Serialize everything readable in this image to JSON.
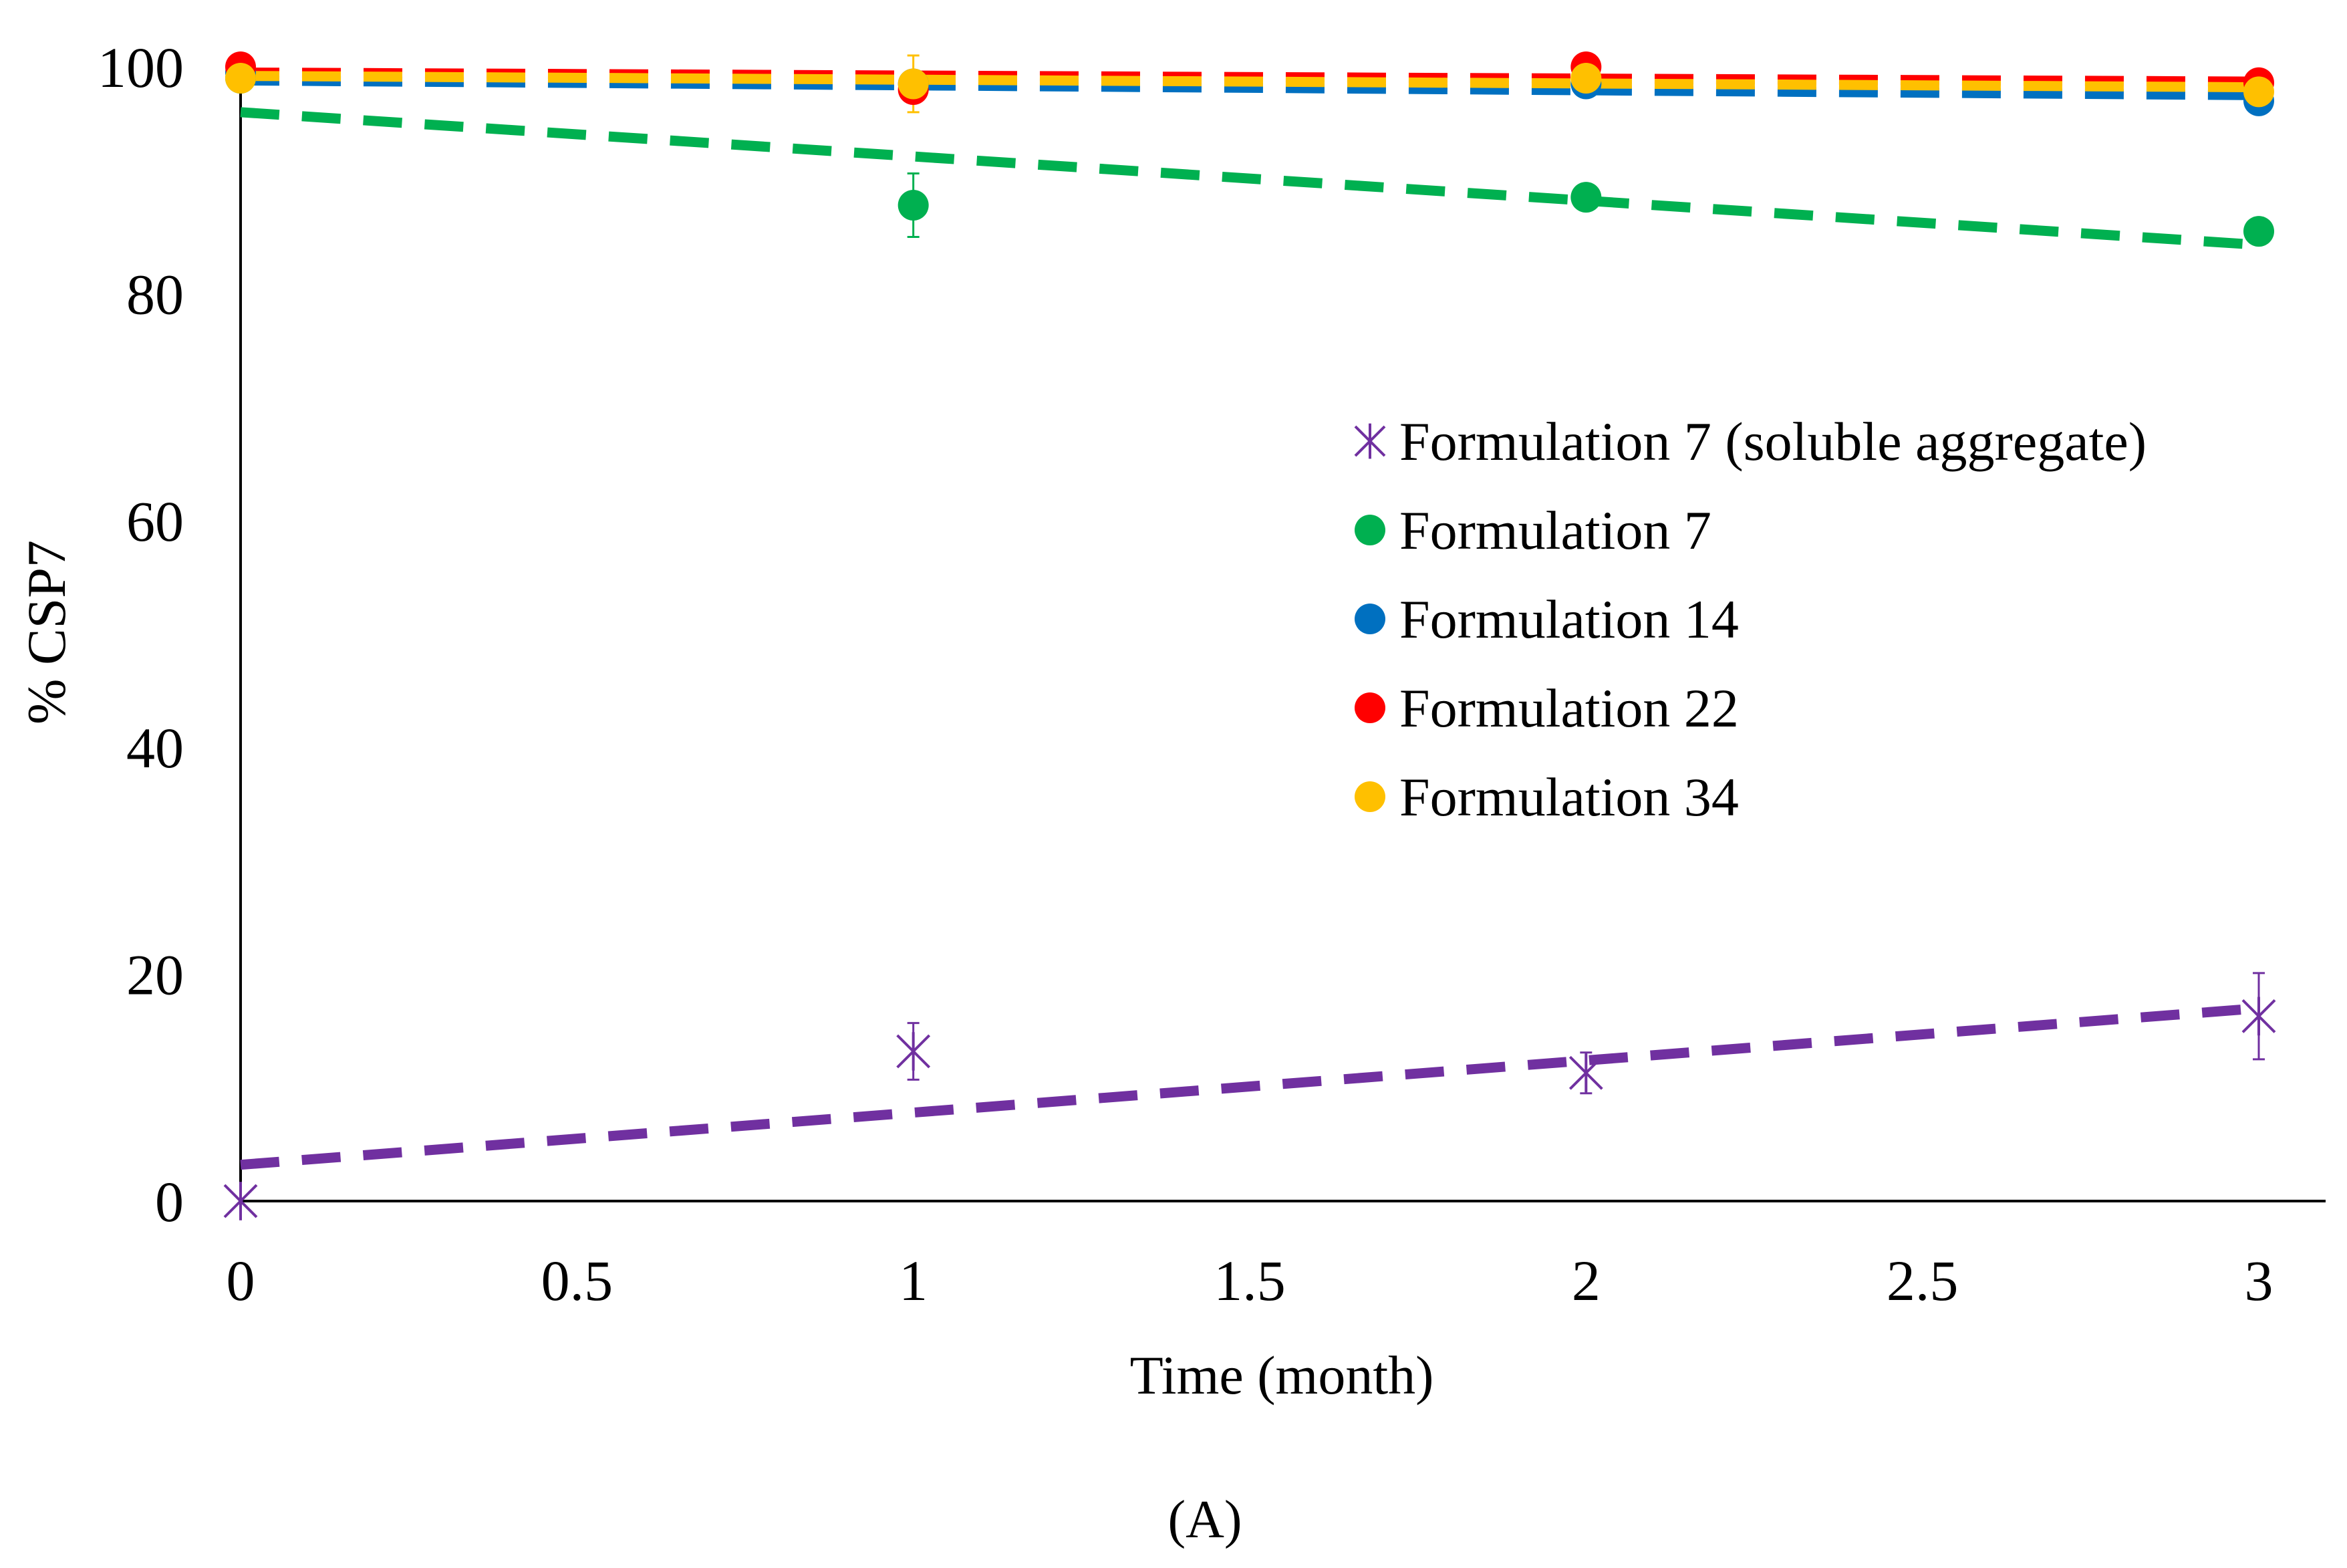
{
  "chart_data": {
    "type": "scatter",
    "panel_label": "(A)",
    "xlabel": "Time (month)",
    "ylabel": "% CSP7",
    "xlim": [
      0,
      3
    ],
    "ylim": [
      0,
      100
    ],
    "x_ticks": [
      "0",
      "0.5",
      "1",
      "1.5",
      "2",
      "2.5",
      "3"
    ],
    "y_ticks": [
      "0",
      "20",
      "40",
      "60",
      "80",
      "100"
    ],
    "x_tick_values": [
      0,
      0.5,
      1,
      1.5,
      2,
      2.5,
      3
    ],
    "y_tick_values": [
      0,
      20,
      40,
      60,
      80,
      100
    ],
    "grid": false,
    "legend_position": "right-middle",
    "series": [
      {
        "name": "Formulation 7 (soluble aggregate)",
        "marker": "asterisk",
        "color": "#7030A0",
        "x": [
          0,
          1,
          2,
          3
        ],
        "y": [
          0,
          13.2,
          11.3,
          16.3
        ],
        "error": [
          0,
          2.5,
          1.8,
          3.8
        ],
        "trendline": {
          "x": [
            0,
            3
          ],
          "y": [
            3.2,
            17.0
          ]
        }
      },
      {
        "name": "Formulation 7",
        "marker": "circle",
        "color": "#00B050",
        "x": [
          0,
          1,
          2,
          3
        ],
        "y": [
          99.0,
          87.8,
          88.5,
          85.5
        ],
        "error": [
          0,
          2.8,
          0.8,
          0.8
        ],
        "trendline": {
          "x": [
            0,
            3
          ],
          "y": [
            96.0,
            84.3
          ]
        }
      },
      {
        "name": "Formulation 14",
        "marker": "circle",
        "color": "#0070C0",
        "x": [
          0,
          1,
          2,
          3
        ],
        "y": [
          99.5,
          98.5,
          98.5,
          97.0
        ],
        "error": [
          0,
          0.8,
          0.5,
          0.5
        ],
        "trendline": {
          "x": [
            0,
            3
          ],
          "y": [
            98.8,
            97.5
          ]
        }
      },
      {
        "name": "Formulation 22",
        "marker": "circle",
        "color": "#FF0000",
        "x": [
          0,
          1,
          2,
          3
        ],
        "y": [
          100.0,
          98.0,
          100.0,
          98.6
        ],
        "error": [
          0,
          1.0,
          0.5,
          0.5
        ],
        "trendline": {
          "x": [
            0,
            3
          ],
          "y": [
            99.5,
            98.7
          ]
        }
      },
      {
        "name": "Formulation 34",
        "marker": "circle",
        "color": "#FFC000",
        "x": [
          0,
          1,
          2,
          3
        ],
        "y": [
          99.0,
          98.5,
          99.0,
          97.8
        ],
        "error": [
          0,
          2.5,
          0.5,
          0.5
        ],
        "trendline": {
          "x": [
            0,
            3
          ],
          "y": [
            99.2,
            98.2
          ]
        }
      }
    ]
  }
}
